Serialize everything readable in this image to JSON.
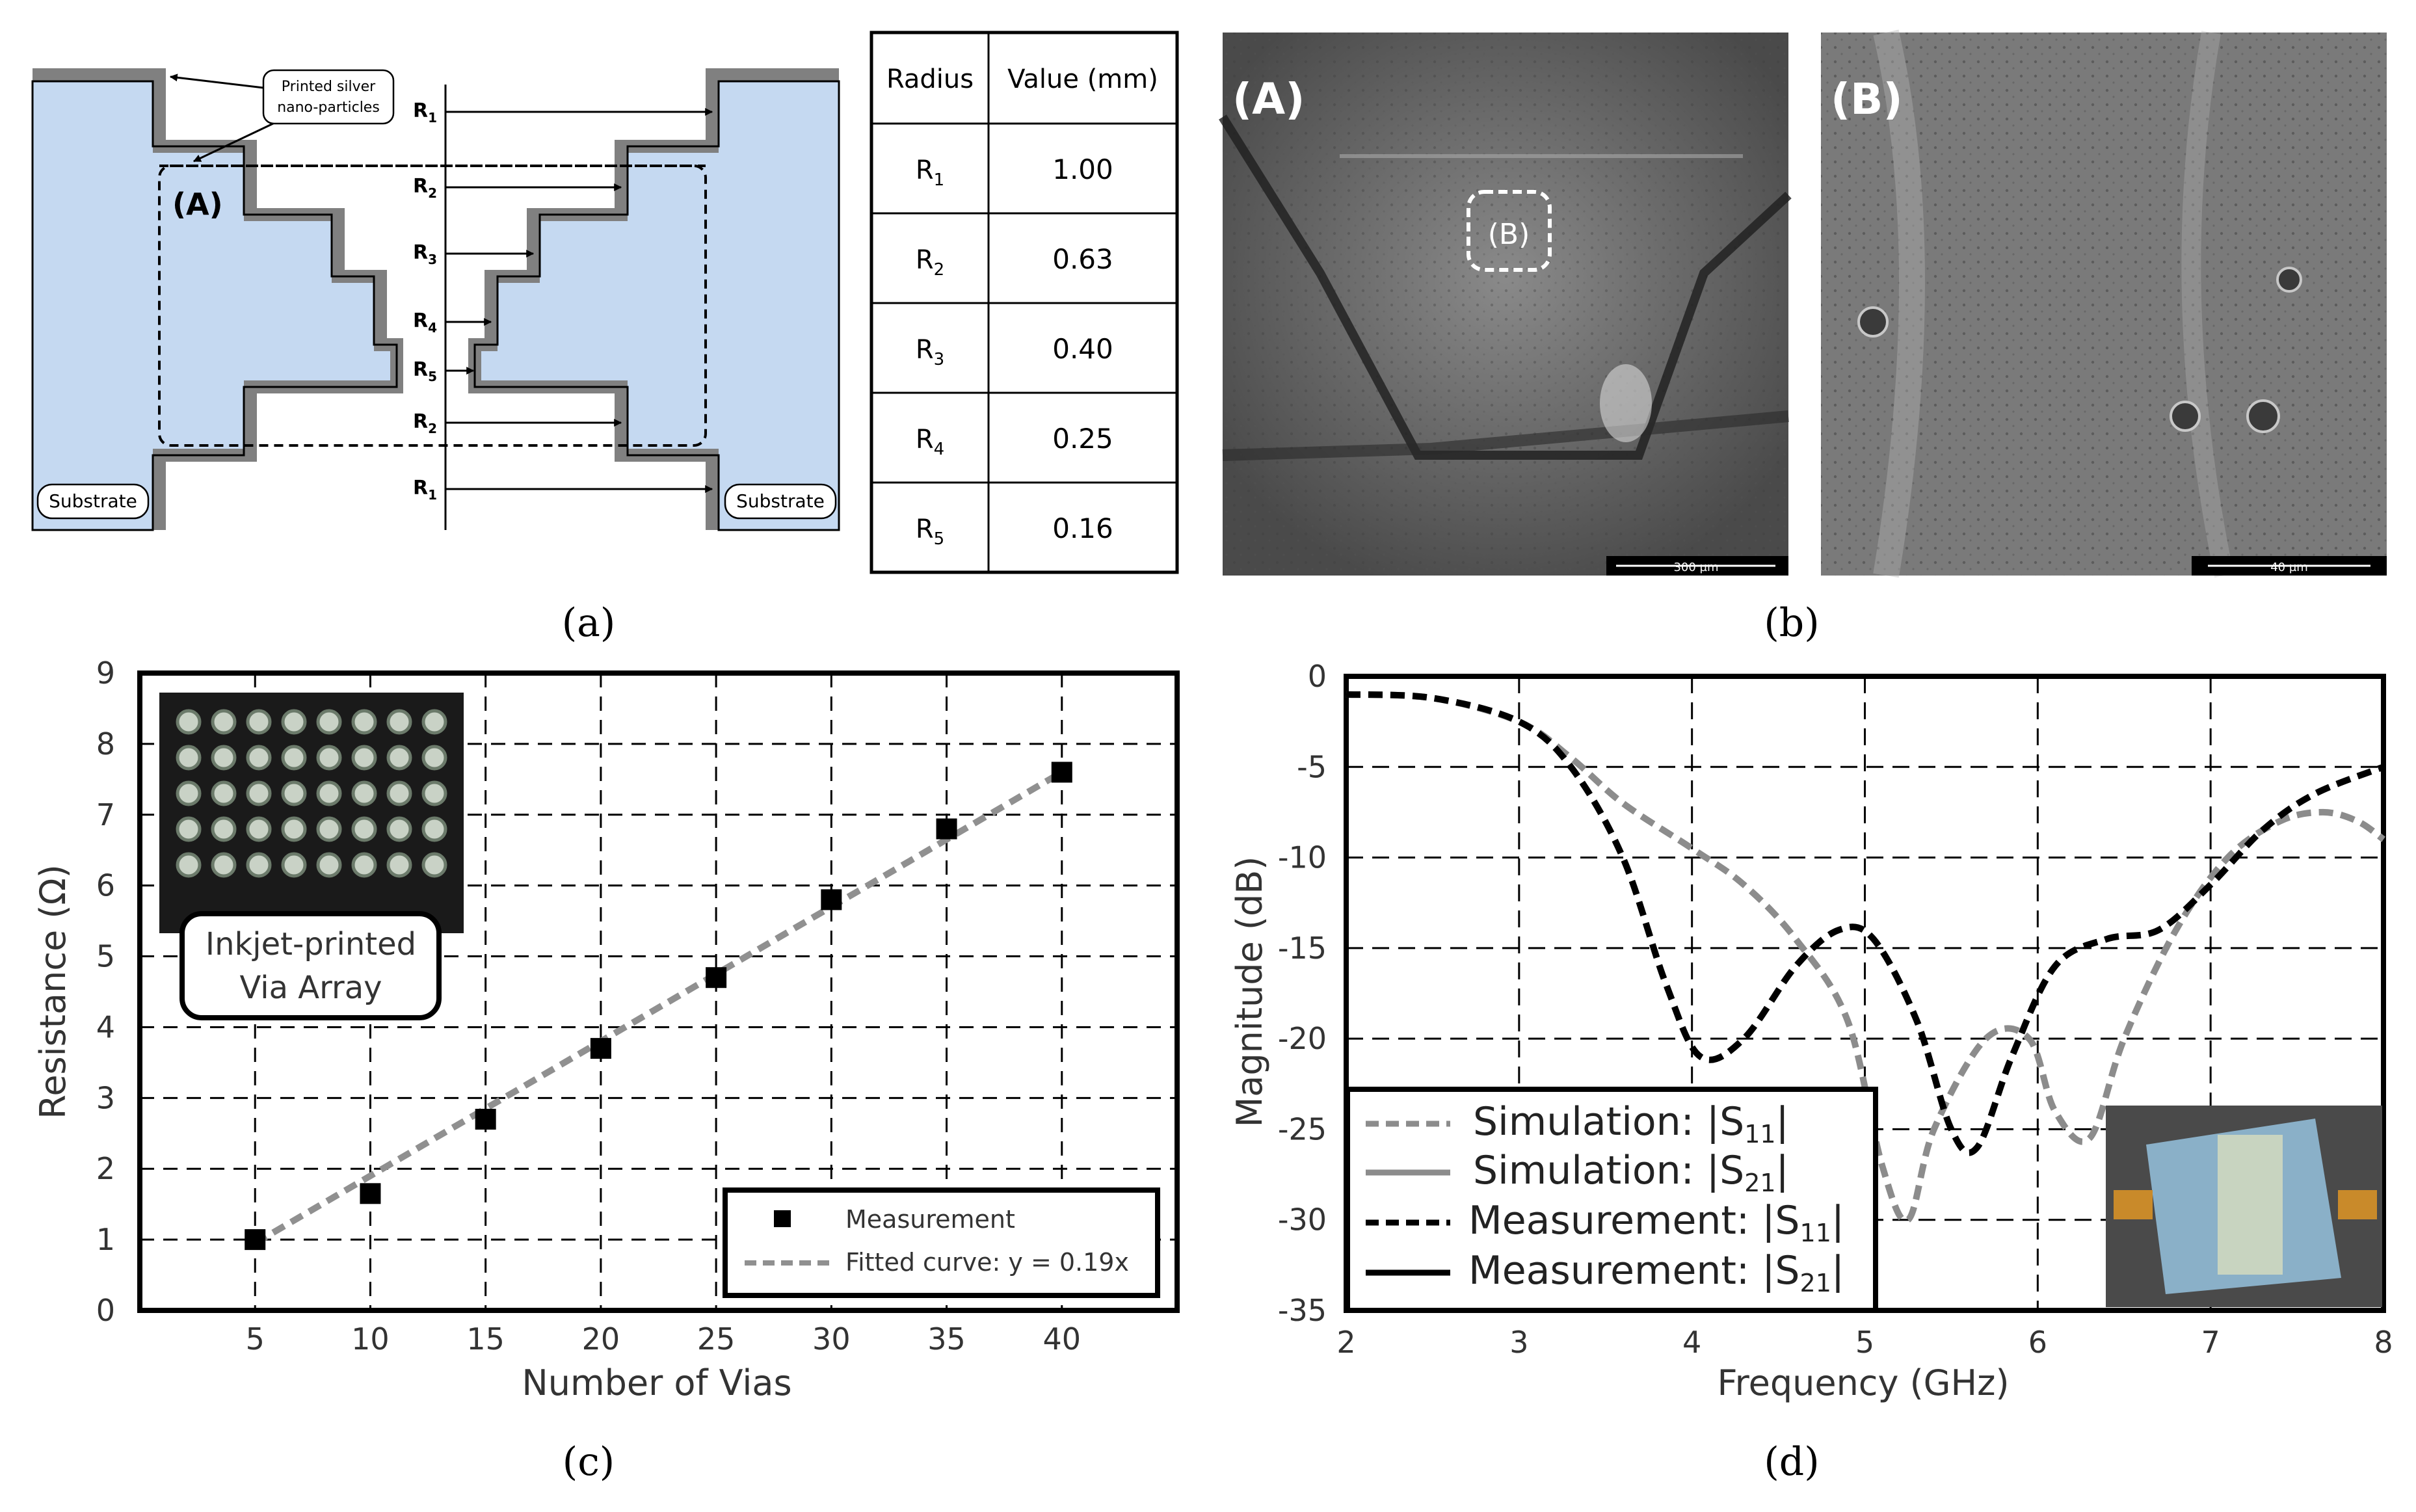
{
  "panel_labels": [
    "(a)",
    "(b)",
    "(c)",
    "(d)"
  ],
  "diagram": {
    "annotation": [
      "Printed silver",
      "nano-particles"
    ],
    "region_label": "(A)",
    "substrate_left": "Substrate",
    "substrate_right": "Substrate",
    "radius_labels": [
      {
        "letter": "R",
        "sub": "1"
      },
      {
        "letter": "R",
        "sub": "2"
      },
      {
        "letter": "R",
        "sub": "3"
      },
      {
        "letter": "R",
        "sub": "4"
      },
      {
        "letter": "R",
        "sub": "5"
      },
      {
        "letter": "R",
        "sub": "2"
      },
      {
        "letter": "R",
        "sub": "1"
      }
    ],
    "colors": {
      "substrate": "#c5d9f1",
      "silver": "#808080"
    }
  },
  "radius_table": {
    "headers": [
      "Radius",
      "Value (mm)"
    ],
    "rows": [
      {
        "letter": "R",
        "sub": "1",
        "value": "1.00"
      },
      {
        "letter": "R",
        "sub": "2",
        "value": "0.63"
      },
      {
        "letter": "R",
        "sub": "3",
        "value": "0.40"
      },
      {
        "letter": "R",
        "sub": "4",
        "value": "0.25"
      },
      {
        "letter": "R",
        "sub": "5",
        "value": "0.16"
      }
    ]
  },
  "sem": {
    "left_label": "(A)",
    "inset_label": "(B)",
    "right_label": "(B)",
    "left_scale": "300 µm",
    "right_scale": "40 µm"
  },
  "chart_data": [
    {
      "type": "scatter",
      "panel": "(c)",
      "xlabel": "Number of Vias",
      "ylabel": "Resistance (Ω)",
      "xlim": [
        0,
        45
      ],
      "ylim": [
        0,
        9
      ],
      "xticks": [
        5,
        10,
        15,
        20,
        25,
        30,
        35,
        40
      ],
      "yticks": [
        0,
        1,
        2,
        3,
        4,
        5,
        6,
        7,
        8,
        9
      ],
      "grid": true,
      "series": [
        {
          "name": "Measurement",
          "x": [
            5,
            10,
            15,
            20,
            25,
            30,
            35,
            40
          ],
          "y": [
            1.0,
            1.65,
            2.7,
            3.7,
            4.7,
            5.8,
            6.8,
            7.6
          ],
          "marker": "square",
          "color": "#000000"
        },
        {
          "name": "Fitted curve: y = 0.19x",
          "x": [
            5,
            40
          ],
          "y": [
            0.95,
            7.6
          ],
          "style": "dashed",
          "color": "#909090"
        }
      ],
      "legend_position": "bottom-right",
      "inset_caption": [
        "Inkjet-printed",
        "Via Array"
      ]
    },
    {
      "type": "line",
      "panel": "(d)",
      "xlabel": "Frequency (GHz)",
      "ylabel": "Magnitude (dB)",
      "xlim": [
        2,
        8
      ],
      "ylim": [
        -35,
        0
      ],
      "xticks": [
        2,
        3,
        4,
        5,
        6,
        7,
        8
      ],
      "yticks": [
        0,
        -5,
        -10,
        -15,
        -20,
        -25,
        -30,
        -35
      ],
      "grid": true,
      "series": [
        {
          "name": "Simulation: |S11|",
          "label_main": "Simulation: |S",
          "label_sub": "11",
          "style": "dashed",
          "color": "#8c8c8c",
          "x": [
            2,
            2.5,
            3,
            3.3,
            3.6,
            4,
            4.3,
            4.6,
            4.9,
            5.1,
            5.25,
            5.4,
            5.7,
            5.95,
            6.1,
            6.3,
            6.5,
            6.8,
            7.1,
            7.4,
            7.65,
            7.85,
            8
          ],
          "y": [
            -1,
            -1.2,
            -2.5,
            -4.5,
            -7,
            -9.5,
            -11.5,
            -14.5,
            -19,
            -27,
            -30,
            -25,
            -20,
            -20,
            -24,
            -25.5,
            -20,
            -14,
            -10,
            -8,
            -7.5,
            -8,
            -9
          ]
        },
        {
          "name": "Simulation: |S21|",
          "label_main": "Simulation: |S",
          "label_sub": "21",
          "style": "solid",
          "color": "#8c8c8c",
          "x": [],
          "y": []
        },
        {
          "name": "Measurement: |S11|",
          "label_main": "Measurement: |S",
          "label_sub": "11",
          "style": "dashed",
          "color": "#000000",
          "x": [
            2,
            2.5,
            3,
            3.3,
            3.6,
            3.85,
            4.05,
            4.3,
            4.6,
            4.85,
            5.05,
            5.3,
            5.5,
            5.65,
            5.85,
            6.1,
            6.4,
            6.7,
            7.0,
            7.3,
            7.6,
            8
          ],
          "y": [
            -1,
            -1.2,
            -2.5,
            -5,
            -10,
            -17,
            -21,
            -20,
            -16,
            -14,
            -14.5,
            -19,
            -25,
            -26,
            -21,
            -16,
            -14.5,
            -14,
            -11.5,
            -8.5,
            -6.5,
            -5
          ]
        },
        {
          "name": "Measurement: |S21|",
          "label_main": "Measurement: |S",
          "label_sub": "21",
          "style": "solid",
          "color": "#000000",
          "x": [],
          "y": []
        }
      ],
      "legend_position": "bottom-left"
    }
  ]
}
